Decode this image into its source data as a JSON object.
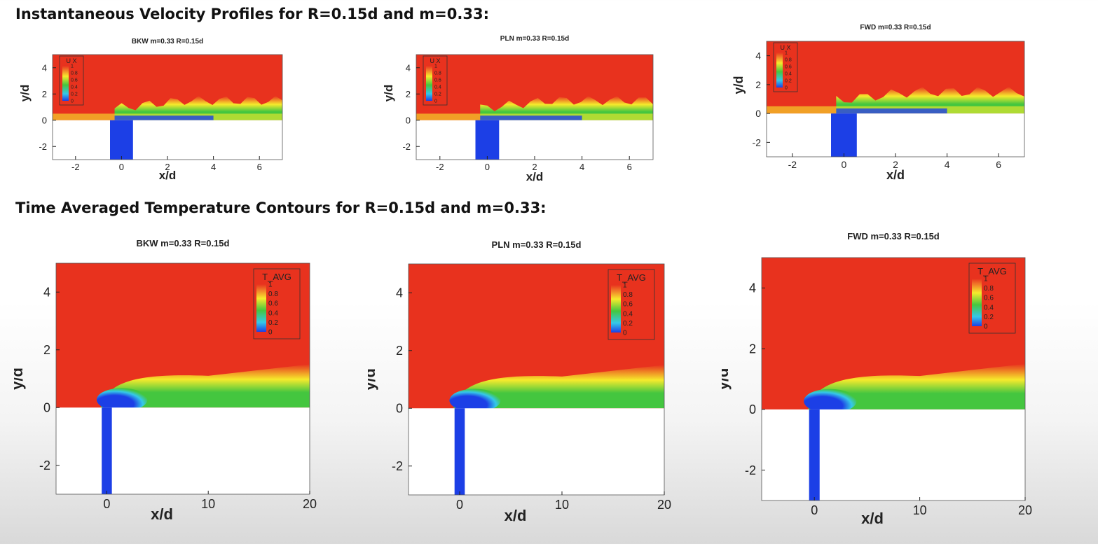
{
  "headings": {
    "velocity": "Instantaneous Velocity Profiles for R=0.15d and m=0.33:",
    "temperature": "Time Averaged Temperature Contours for R=0.15d and m=0.33:"
  },
  "colors": {
    "free_stream": "#e8321e",
    "yellow": "#f6ea2c",
    "green": "#44c63f",
    "cyan": "#35c8e8",
    "blue": "#1c3fe6",
    "wall": "#ffffff"
  },
  "chart_data": [
    {
      "type": "heatmap",
      "title": "BKW m=0.33 R=0.15d",
      "variable": "U X",
      "xlabel": "x/d",
      "ylabel": "y/d",
      "xlim": [
        -3,
        7
      ],
      "ylim": [
        -3,
        5
      ],
      "xticks": [
        -2,
        0,
        2,
        4,
        6
      ],
      "yticks": [
        -2,
        0,
        2,
        4
      ],
      "legend": {
        "title": "U X",
        "values": [
          1,
          0.8,
          0.6,
          0.4,
          0.2,
          0
        ],
        "placement": "top-left"
      }
    },
    {
      "type": "heatmap",
      "title": "PLN m=0.33 R=0.15d",
      "variable": "U X",
      "xlabel": "x/d",
      "ylabel": "y/d",
      "xlim": [
        -3,
        7
      ],
      "ylim": [
        -3,
        5
      ],
      "xticks": [
        -2,
        0,
        2,
        4,
        6
      ],
      "yticks": [
        -2,
        0,
        2,
        4
      ],
      "legend": {
        "title": "U X",
        "values": [
          1,
          0.8,
          0.6,
          0.4,
          0.2,
          0
        ],
        "placement": "top-left"
      }
    },
    {
      "type": "heatmap",
      "title": "FWD m=0.33 R=0.15d",
      "variable": "U X",
      "xlabel": "x/d",
      "ylabel": "y/d",
      "xlim": [
        -3,
        7
      ],
      "ylim": [
        -3,
        5
      ],
      "xticks": [
        -2,
        0,
        2,
        4,
        6
      ],
      "yticks": [
        -2,
        0,
        2,
        4
      ],
      "legend": {
        "title": "U X",
        "values": [
          1,
          0.8,
          0.6,
          0.4,
          0.2,
          0
        ],
        "placement": "top-left"
      }
    },
    {
      "type": "heatmap",
      "title": "BKW m=0.33 R=0.15d",
      "variable": "T_AVG",
      "xlabel": "x/d",
      "ylabel": "y/d",
      "xlim": [
        -5,
        20
      ],
      "ylim": [
        -3,
        5
      ],
      "xticks": [
        0,
        10,
        20
      ],
      "yticks": [
        -2,
        0,
        2,
        4
      ],
      "legend": {
        "title": "T_AVG",
        "values": [
          1,
          0.8,
          0.6,
          0.4,
          0.2,
          0
        ],
        "placement": "top-right"
      }
    },
    {
      "type": "heatmap",
      "title": "PLN m=0.33 R=0.15d",
      "variable": "T_AVG",
      "xlabel": "x/d",
      "ylabel": "y/d",
      "xlim": [
        -5,
        20
      ],
      "ylim": [
        -3,
        5
      ],
      "xticks": [
        0,
        10,
        20
      ],
      "yticks": [
        -2,
        0,
        2,
        4
      ],
      "legend": {
        "title": "T_AVG",
        "values": [
          1,
          0.8,
          0.6,
          0.4,
          0.2,
          0
        ],
        "placement": "top-right"
      }
    },
    {
      "type": "heatmap",
      "title": "FWD m=0.33 R=0.15d",
      "variable": "T_AVG",
      "xlabel": "x/d",
      "ylabel": "y/d",
      "xlim": [
        -5,
        20
      ],
      "ylim": [
        -3,
        5
      ],
      "xticks": [
        0,
        10,
        20
      ],
      "yticks": [
        -2,
        0,
        2,
        4
      ],
      "legend": {
        "title": "T_AVG",
        "values": [
          1,
          0.8,
          0.6,
          0.4,
          0.2,
          0
        ],
        "placement": "top-right"
      }
    }
  ]
}
